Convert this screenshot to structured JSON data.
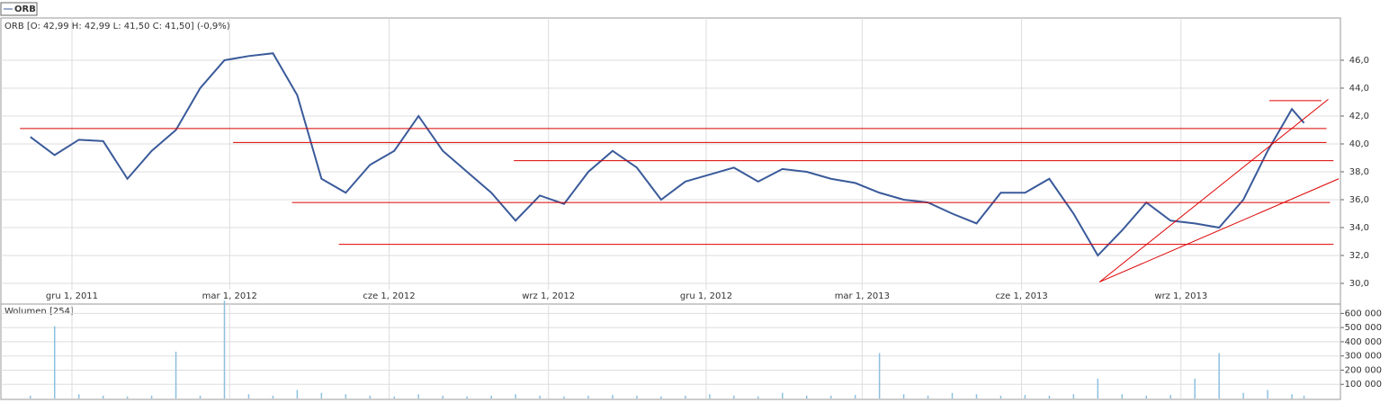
{
  "chart_data": [
    {
      "type": "line",
      "subtitle": "ORB [O: 42,99  H: 42,99  L: 41,50  C: 41,50] (-0,9%)",
      "x": [
        "2011-11-07",
        "2011-11-21",
        "2011-12-05",
        "2011-12-19",
        "2012-01-02",
        "2012-01-16",
        "2012-01-30",
        "2012-02-13",
        "2012-02-27",
        "2012-03-12",
        "2012-03-26",
        "2012-04-09",
        "2012-04-23",
        "2012-05-07",
        "2012-05-21",
        "2012-06-04",
        "2012-06-18",
        "2012-07-02",
        "2012-07-16",
        "2012-07-30",
        "2012-08-13",
        "2012-08-27",
        "2012-09-10",
        "2012-09-24",
        "2012-10-08",
        "2012-10-22",
        "2012-11-05",
        "2012-11-19",
        "2012-12-03",
        "2012-12-17",
        "2012-12-31",
        "2013-01-14",
        "2013-01-28",
        "2013-02-11",
        "2013-02-25",
        "2013-03-11",
        "2013-03-25",
        "2013-04-08",
        "2013-04-22",
        "2013-05-06",
        "2013-05-20",
        "2013-06-03",
        "2013-06-17",
        "2013-07-01",
        "2013-07-15",
        "2013-07-29",
        "2013-08-12",
        "2013-08-26",
        "2013-09-09",
        "2013-09-23",
        "2013-10-07",
        "2013-10-21",
        "2013-11-04",
        "2013-11-11"
      ],
      "series": [
        {
          "name": "ORB",
          "color": "#3a5a9a",
          "values": [
            40.5,
            39.2,
            40.3,
            40.2,
            37.5,
            39.5,
            41.0,
            44.0,
            46.0,
            46.3,
            46.5,
            43.5,
            37.5,
            36.5,
            38.5,
            39.5,
            42.0,
            39.5,
            38.0,
            36.5,
            34.5,
            36.3,
            35.7,
            38.0,
            39.5,
            38.3,
            36.0,
            37.3,
            37.8,
            38.3,
            37.3,
            38.2,
            38.0,
            37.5,
            37.2,
            36.5,
            36.0,
            35.8,
            35.0,
            34.3,
            36.5,
            36.5,
            37.5,
            35.0,
            32.0,
            33.8,
            35.8,
            34.5,
            34.3,
            34.0,
            36.0,
            39.5,
            42.5,
            41.5
          ]
        }
      ],
      "xlim": [
        "2011-10-21",
        "2013-12-02"
      ],
      "xticks": [
        {
          "value": "2011-12-01",
          "label": "gru 1, 2011"
        },
        {
          "value": "2012-03-01",
          "label": "mar 1, 2012"
        },
        {
          "value": "2012-06-01",
          "label": "cze 1, 2012"
        },
        {
          "value": "2012-09-01",
          "label": "wrz 1, 2012"
        },
        {
          "value": "2012-12-01",
          "label": "gru 1, 2012"
        },
        {
          "value": "2013-03-01",
          "label": "mar 1, 2013"
        },
        {
          "value": "2013-06-01",
          "label": "cze 1, 2013"
        },
        {
          "value": "2013-09-01",
          "label": "wrz 1, 2013"
        }
      ],
      "ylim": [
        29.55,
        48.9
      ],
      "yticks": [
        {
          "value": 30,
          "label": "30,0"
        },
        {
          "value": 32,
          "label": "32,0"
        },
        {
          "value": 34,
          "label": "34,0"
        },
        {
          "value": 36,
          "label": "36,0"
        },
        {
          "value": 38,
          "label": "38,0"
        },
        {
          "value": 40,
          "label": "40,0"
        },
        {
          "value": 42,
          "label": "42,0"
        },
        {
          "value": 44,
          "label": "44,0"
        },
        {
          "value": 46,
          "label": "46,0"
        }
      ],
      "grid": true,
      "line_color": "#dd0000",
      "levels": [
        {
          "value": 41.1,
          "from": "2011-11-01",
          "to": "2013-11-24"
        },
        {
          "value": 40.1,
          "from": "2012-03-03",
          "to": "2013-11-24"
        },
        {
          "value": 38.8,
          "from": "2012-08-12",
          "to": "2013-11-28"
        },
        {
          "value": 35.8,
          "from": "2012-04-06",
          "to": "2013-11-26"
        },
        {
          "value": 32.8,
          "from": "2012-05-03",
          "to": "2013-11-28"
        },
        {
          "value": 43.1,
          "from": "2013-10-22",
          "to": "2013-11-21"
        }
      ],
      "trendlines": [
        {
          "x": [
            "2013-07-16",
            "2013-11-25"
          ],
          "y": [
            30.1,
            43.2
          ]
        },
        {
          "x": [
            "2013-07-16",
            "2013-12-01"
          ],
          "y": [
            30.1,
            37.5
          ]
        }
      ]
    },
    {
      "type": "bar",
      "title": "Wolumen [254]",
      "color": "#8cc0e0",
      "x": [
        "2011-11-07",
        "2011-11-21",
        "2011-12-05",
        "2011-12-19",
        "2012-01-02",
        "2012-01-16",
        "2012-01-30",
        "2012-02-13",
        "2012-02-27",
        "2012-03-12",
        "2012-03-26",
        "2012-04-09",
        "2012-04-23",
        "2012-05-07",
        "2012-05-21",
        "2012-06-04",
        "2012-06-18",
        "2012-07-02",
        "2012-07-16",
        "2012-07-30",
        "2012-08-13",
        "2012-08-27",
        "2012-09-10",
        "2012-09-24",
        "2012-10-08",
        "2012-10-22",
        "2012-11-05",
        "2012-11-19",
        "2012-12-03",
        "2012-12-17",
        "2012-12-31",
        "2013-01-14",
        "2013-01-28",
        "2013-02-11",
        "2013-02-25",
        "2013-03-11",
        "2013-03-25",
        "2013-04-08",
        "2013-04-22",
        "2013-05-06",
        "2013-05-20",
        "2013-06-03",
        "2013-06-17",
        "2013-07-01",
        "2013-07-15",
        "2013-07-29",
        "2013-08-12",
        "2013-08-26",
        "2013-09-09",
        "2013-09-23",
        "2013-10-07",
        "2013-10-21",
        "2013-11-04",
        "2013-11-11"
      ],
      "values": [
        20000,
        510000,
        30000,
        20000,
        15000,
        20000,
        330000,
        20000,
        690000,
        30000,
        20000,
        60000,
        40000,
        30000,
        20000,
        15000,
        30000,
        20000,
        15000,
        20000,
        30000,
        20000,
        15000,
        20000,
        25000,
        20000,
        15000,
        20000,
        30000,
        20000,
        15000,
        40000,
        20000,
        20000,
        25000,
        320000,
        30000,
        20000,
        40000,
        30000,
        20000,
        25000,
        20000,
        30000,
        140000,
        30000,
        20000,
        25000,
        140000,
        320000,
        40000,
        60000,
        30000,
        20000
      ],
      "xlim": [
        "2011-10-21",
        "2013-12-02"
      ],
      "ylim": [
        0,
        666000
      ],
      "yticks": [
        {
          "value": 100000,
          "label": "100 000"
        },
        {
          "value": 200000,
          "label": "200 000"
        },
        {
          "value": 300000,
          "label": "300 000"
        },
        {
          "value": 400000,
          "label": "400 000"
        },
        {
          "value": 500000,
          "label": "500 000"
        },
        {
          "value": 600000,
          "label": "600 000"
        }
      ],
      "grid": true
    }
  ]
}
